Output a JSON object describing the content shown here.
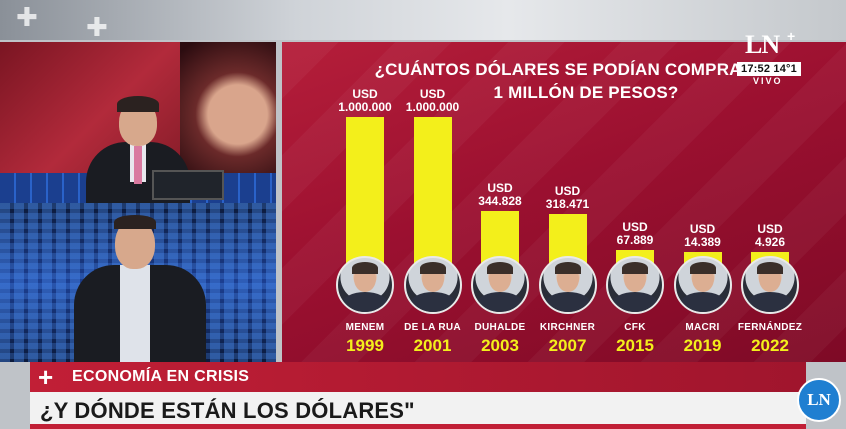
{
  "chart_data": {
    "type": "bar",
    "title": "¿CUÁNTOS DÓLARES SE PODÍAN COMPRAR CON 1 MILLÓN DE PESOS?",
    "title_line1": "¿CUÁNTOS DÓLARES SE PODÍAN COMPRAR CON",
    "title_line2": "1 MILLÓN DE PESOS?",
    "value_prefix": "USD",
    "bar_color": "#f3ef1b",
    "background_color": "#9b1030",
    "max_value": 1000000,
    "categories": [
      "1999",
      "2001",
      "2003",
      "2007",
      "2015",
      "2019",
      "2022"
    ],
    "items": [
      {
        "name": "MENEM",
        "year": "1999",
        "value": 1000000,
        "value_label": "1.000.000"
      },
      {
        "name": "DE LA RUA",
        "year": "2001",
        "value": 1000000,
        "value_label": "1.000.000"
      },
      {
        "name": "DUHALDE",
        "year": "2003",
        "value": 344828,
        "value_label": "344.828"
      },
      {
        "name": "KIRCHNER",
        "year": "2007",
        "value": 318471,
        "value_label": "318.471"
      },
      {
        "name": "CFK",
        "year": "2015",
        "value": 67889,
        "value_label": "67.889"
      },
      {
        "name": "MACRI",
        "year": "2019",
        "value": 14389,
        "value_label": "14.389"
      },
      {
        "name": "FERNÁNDEZ",
        "year": "2022",
        "value": 4926,
        "value_label": "4.926"
      }
    ]
  },
  "channel": {
    "logo_text": "LN",
    "logo_plus": "+",
    "time": "17:52",
    "temperature": "14°1",
    "live_label": "VIVO",
    "badge_text": "LN"
  },
  "lower_third": {
    "plus": "+",
    "section": "ECONOMÍA EN CRISIS",
    "headline": "¿Y DÓNDE ESTÁN LOS DÓLARES\"",
    "accent_color": "#c11f36"
  }
}
